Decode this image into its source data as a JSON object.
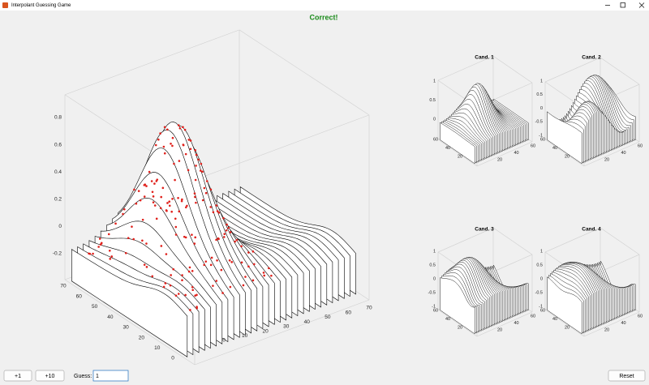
{
  "window": {
    "title": "Interpolant Guessing Game"
  },
  "status": "Correct!",
  "main_plot": {
    "z_ticks": [
      "0.8",
      "0.6",
      "0.4",
      "0.2",
      "0",
      "-0.2"
    ],
    "y_ticks": [
      "70",
      "60",
      "50",
      "40",
      "30",
      "20",
      "10",
      "0"
    ],
    "x_ticks": [
      "0",
      "10",
      "20",
      "30",
      "40",
      "50",
      "60",
      "70"
    ]
  },
  "candidates": [
    {
      "title": "Cand. 1",
      "z_ticks": [
        "1",
        "0.5",
        "0"
      ],
      "y_ticks": [
        "60",
        "40",
        "20"
      ],
      "x_ticks": [
        "20",
        "40",
        "60"
      ]
    },
    {
      "title": "Cand. 2",
      "z_ticks": [
        "1",
        "0.5",
        "0",
        "-0.5",
        "-1"
      ],
      "y_ticks": [
        "60",
        "40",
        "20"
      ],
      "x_ticks": [
        "20",
        "40",
        "60"
      ]
    },
    {
      "title": "Cand. 3",
      "z_ticks": [
        "1",
        "0.5",
        "0",
        "-0.5",
        "-1"
      ],
      "y_ticks": [
        "60",
        "40",
        "20"
      ],
      "x_ticks": [
        "20",
        "40",
        "60"
      ]
    },
    {
      "title": "Cand. 4",
      "z_ticks": [
        "1",
        "0.5",
        "0",
        "-0.5",
        "-1"
      ],
      "y_ticks": [
        "60",
        "40",
        "20"
      ],
      "x_ticks": [
        "20",
        "40",
        "60"
      ]
    }
  ],
  "controls": {
    "plus_one": "+1",
    "plus_ten": "+10",
    "guess_label": "Guess:",
    "guess_value": "1",
    "reset": "Reset"
  }
}
